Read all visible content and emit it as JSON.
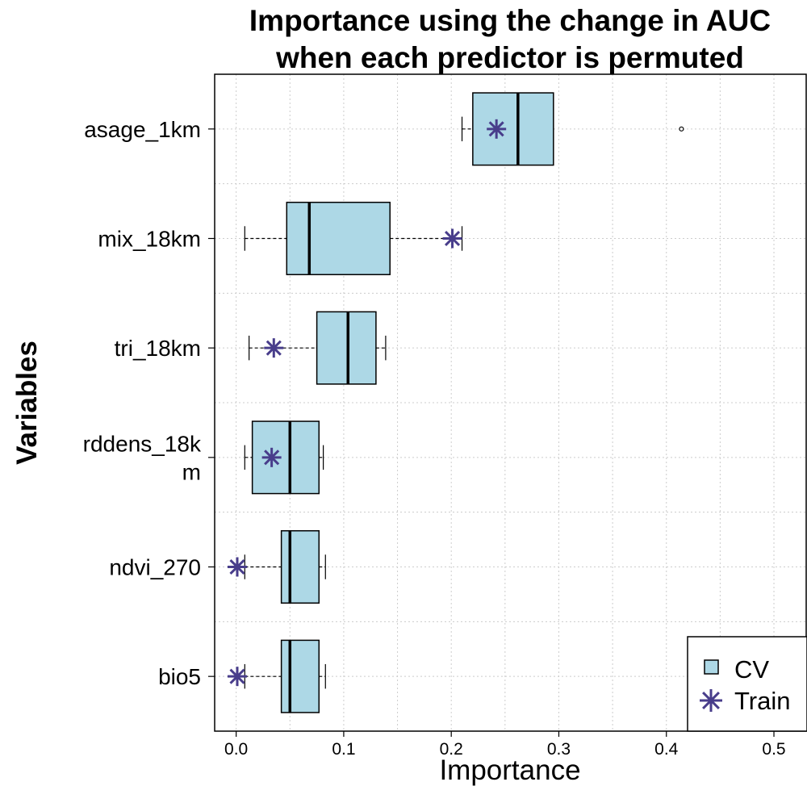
{
  "chart_data": {
    "type": "boxplot",
    "title": [
      "Importance using the change in AUC",
      "when each predictor is permuted"
    ],
    "xlabel": "Importance",
    "ylabel": "Variables",
    "xlim": [
      -0.02,
      0.53
    ],
    "xticks": [
      0.0,
      0.1,
      0.2,
      0.3,
      0.4,
      0.5
    ],
    "xtick_labels": [
      "0.0",
      "0.1",
      "0.2",
      "0.3",
      "0.4",
      "0.5"
    ],
    "grid": true,
    "legend": {
      "position": "bottom-right",
      "entries": [
        "CV",
        "Train"
      ]
    },
    "colors": {
      "box_fill": "#add8e6",
      "train_marker": "#483d8b",
      "grid": "#cccccc"
    },
    "categories": [
      {
        "label": [
          "asage_1km"
        ],
        "whisker_low": 0.21,
        "q1": 0.22,
        "median": 0.262,
        "q3": 0.295,
        "whisker_high": 0.295,
        "outliers": [
          0.414
        ],
        "train": 0.242
      },
      {
        "label": [
          "mix_18km"
        ],
        "whisker_low": 0.008,
        "q1": 0.047,
        "median": 0.068,
        "q3": 0.143,
        "whisker_high": 0.21,
        "outliers": [],
        "train": 0.201
      },
      {
        "label": [
          "tri_18km"
        ],
        "whisker_low": 0.012,
        "q1": 0.075,
        "median": 0.104,
        "q3": 0.13,
        "whisker_high": 0.139,
        "outliers": [],
        "train": 0.035
      },
      {
        "label": [
          "rddens_18k",
          "m"
        ],
        "whisker_low": 0.008,
        "q1": 0.015,
        "median": 0.05,
        "q3": 0.077,
        "whisker_high": 0.081,
        "outliers": [],
        "train": 0.033
      },
      {
        "label": [
          "ndvi_270"
        ],
        "whisker_low": 0.008,
        "q1": 0.042,
        "median": 0.05,
        "q3": 0.077,
        "whisker_high": 0.083,
        "outliers": [],
        "train": 0.001
      },
      {
        "label": [
          "bio5"
        ],
        "whisker_low": 0.008,
        "q1": 0.042,
        "median": 0.05,
        "q3": 0.077,
        "whisker_high": 0.083,
        "outliers": [],
        "train": 0.001
      }
    ]
  }
}
